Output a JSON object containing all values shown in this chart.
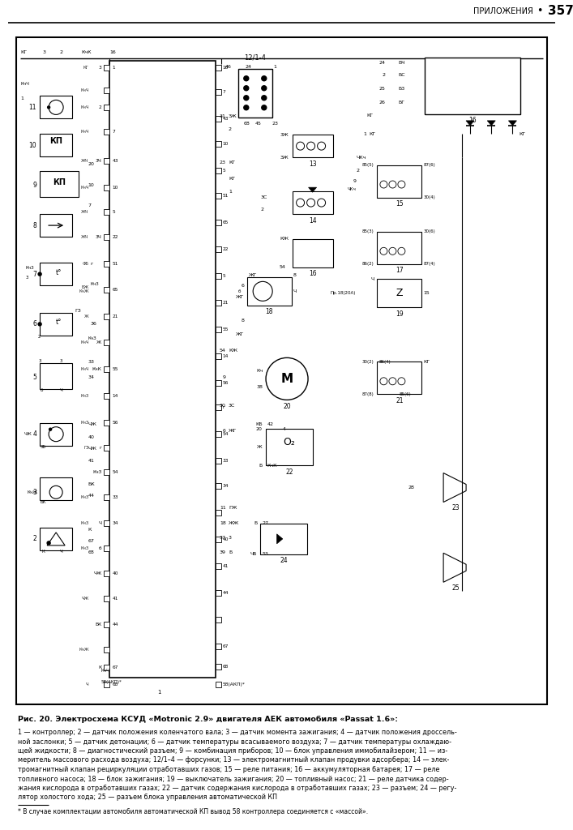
{
  "title_header": "ПРИЛОЖЕНИЯ•57",
  "title_bullet": "•",
  "title_num": "357",
  "figure_caption": "Рис. 20. Электросхема КСУД «Motronic 2.9» двигателя АЕК автомобиля «Passat 1.6»:",
  "footnote_lines": [
    "1 — контроллер; 2 — датчик положения коленчатого вала; 3 — датчик момента зажигания; 4 — датчик положения дроссель-",
    "ной заслонки; 5 — датчик детонации; 6 — датчик температуры всасываемого воздуха; 7 — датчик температуры охлаждаю-",
    "щей жидкости; 8 — диагностический разъем; 9 — комбинация приборов; 10 — блок управления иммобилайзером; 11 — из-",
    "меритель массового расхода воздуха; 12/1–4 — форсунки; 13 — электромагнитный клапан продувки адсорбера; 14 — элек-",
    "тромагнитный клапан рециркуляции отработавших газов; 15 — реле питания; 16 — аккумуляторная батарея; 17 — реле",
    "топливного насоса; 18 — блок зажигания; 19 — выключатель зажигания; 20 — топливный насос; 21 — реле датчика содер-",
    "жания кислорода в отработавших газах; 22 — датчик содержания кислорода в отработавших газах; 23 — разъем; 24 — регу-",
    "лятор холостого хода; 25 — разъем блока управления автоматической КП"
  ],
  "footnote_asterisk": "* В случае комплектации автомобиля автоматической КП вывод 58 контроллера соединяется с «массой».",
  "bg_color": "#ffffff"
}
